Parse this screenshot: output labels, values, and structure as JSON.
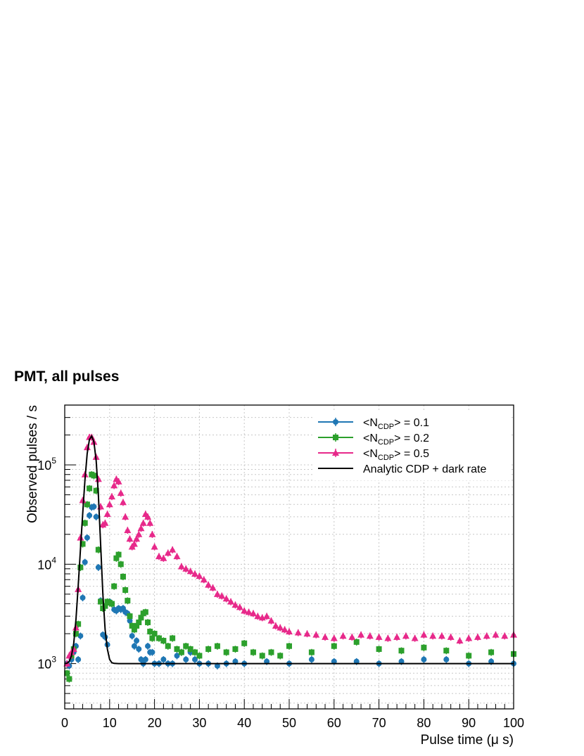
{
  "chart_data": {
    "type": "scatter",
    "title": "PMT, all pulses",
    "xlabel": "Pulse time (μ s)",
    "ylabel": "Observed pulses / s",
    "xlim": [
      0,
      100
    ],
    "ylim": [
      350,
      400000
    ],
    "y_scale": "log",
    "grid": true,
    "legend_position": "top-right",
    "x_ticks": [
      "0",
      "10",
      "20",
      "30",
      "40",
      "50",
      "60",
      "70",
      "80",
      "90",
      "100"
    ],
    "y_ticks": [
      {
        "base": "10",
        "exp": "3",
        "value": 1000
      },
      {
        "base": "10",
        "exp": "4",
        "value": 10000
      },
      {
        "base": "10",
        "exp": "5",
        "value": 100000
      }
    ],
    "series": [
      {
        "name": "<N_CDP> = 0.1",
        "legend": {
          "pre": "<N",
          "sub": "CDP",
          "post": "> = 0.1"
        },
        "color": "#1f77b4",
        "marker": "circle",
        "x": [
          0.5,
          1,
          1.5,
          2,
          2.5,
          3,
          3.5,
          4,
          4.5,
          5,
          5.5,
          6,
          6.5,
          7,
          7.5,
          8,
          8.5,
          9,
          9.5,
          10,
          10.5,
          11,
          11.5,
          12,
          12.5,
          13,
          13.5,
          14,
          14.5,
          15,
          15.5,
          16,
          16.5,
          17,
          17.5,
          18,
          18.5,
          19,
          19.5,
          20,
          21,
          22,
          23,
          24,
          25,
          26,
          27,
          28,
          29,
          30,
          32,
          34,
          36,
          38,
          40,
          45,
          50,
          55,
          60,
          65,
          70,
          75,
          80,
          85,
          90,
          95,
          100
        ],
        "y": [
          1000,
          950,
          1100,
          1300,
          1500,
          1100,
          1900,
          4600,
          10500,
          18500,
          31000,
          37500,
          38000,
          30000,
          9300,
          4300,
          1950,
          1850,
          1550,
          4200,
          4000,
          3500,
          3400,
          3600,
          3500,
          3600,
          3300,
          3200,
          2700,
          1900,
          1500,
          1700,
          1400,
          1100,
          1000,
          1100,
          1500,
          1300,
          1300,
          1000,
          1000,
          1100,
          1000,
          1000,
          1200,
          1300,
          1100,
          1300,
          1100,
          1000,
          1000,
          950,
          1000,
          1050,
          1000,
          1050,
          1000,
          1100,
          1050,
          1050,
          1000,
          1050,
          1100,
          1100,
          1000,
          1050,
          1000
        ]
      },
      {
        "name": "<N_CDP> = 0.2",
        "legend": {
          "pre": "<N",
          "sub": "CDP",
          "post": "> = 0.2"
        },
        "color": "#2ca02c",
        "marker": "square",
        "x": [
          0.5,
          1,
          1.5,
          2,
          2.5,
          3,
          3.5,
          4,
          4.5,
          5,
          5.5,
          6,
          6.5,
          7,
          7.5,
          8,
          8.5,
          9,
          9.5,
          10,
          10.5,
          11,
          11.5,
          12,
          12.5,
          13,
          13.5,
          14,
          14.5,
          15,
          15.5,
          16,
          16.5,
          17,
          17.5,
          18,
          18.5,
          19,
          19.5,
          20,
          21,
          22,
          23,
          24,
          25,
          26,
          27,
          28,
          29,
          30,
          32,
          34,
          36,
          38,
          40,
          42,
          44,
          46,
          48,
          50,
          55,
          60,
          65,
          70,
          75,
          80,
          85,
          90,
          95,
          100
        ],
        "y": [
          800,
          700,
          1200,
          1400,
          2000,
          2500,
          9300,
          16000,
          26000,
          40000,
          58000,
          80000,
          78000,
          55000,
          14000,
          4200,
          3600,
          3800,
          4200,
          4100,
          4000,
          6000,
          11500,
          12500,
          10000,
          7500,
          5500,
          4300,
          3000,
          2400,
          2200,
          2400,
          2600,
          2900,
          3200,
          3300,
          2600,
          2100,
          1800,
          2000,
          1800,
          1700,
          1500,
          1800,
          1400,
          1300,
          1500,
          1400,
          1300,
          1200,
          1400,
          1500,
          1300,
          1400,
          1600,
          1300,
          1200,
          1300,
          1200,
          1500,
          1300,
          1500,
          1650,
          1400,
          1350,
          1450,
          1350,
          1200,
          1300,
          1250
        ]
      },
      {
        "name": "<N_CDP> = 0.5",
        "legend": {
          "pre": "<N",
          "sub": "CDP",
          "post": "> = 0.5"
        },
        "color": "#e7298a",
        "marker": "triangle",
        "x": [
          0.5,
          1,
          1.5,
          2,
          2.5,
          3,
          3.5,
          4,
          4.5,
          5,
          5.5,
          6,
          6.5,
          7,
          7.5,
          8,
          8.5,
          9,
          9.5,
          10,
          10.5,
          11,
          11.5,
          12,
          12.5,
          13,
          13.5,
          14,
          14.5,
          15,
          15.5,
          16,
          16.5,
          17,
          17.5,
          18,
          18.5,
          19,
          19.5,
          20,
          21,
          22,
          23,
          24,
          25,
          26,
          27,
          28,
          29,
          30,
          31,
          32,
          33,
          34,
          35,
          36,
          37,
          38,
          39,
          40,
          41,
          42,
          43,
          44,
          45,
          46,
          47,
          48,
          49,
          50,
          52,
          54,
          56,
          58,
          60,
          62,
          64,
          66,
          68,
          70,
          72,
          74,
          76,
          78,
          80,
          82,
          84,
          86,
          88,
          90,
          92,
          94,
          96,
          98,
          100
        ],
        "y": [
          1000,
          1200,
          1300,
          1400,
          2300,
          5600,
          18500,
          44000,
          80000,
          150000,
          190000,
          190000,
          170000,
          120000,
          72000,
          38000,
          25000,
          26000,
          32000,
          40000,
          48000,
          62000,
          72000,
          68000,
          52000,
          42000,
          30000,
          22000,
          18000,
          15000,
          16000,
          18000,
          20000,
          23000,
          26000,
          32000,
          30000,
          26000,
          20000,
          15000,
          12000,
          11500,
          13000,
          14000,
          12000,
          9500,
          9000,
          8500,
          8000,
          7600,
          7000,
          6200,
          5800,
          5000,
          4800,
          4500,
          4200,
          3900,
          3700,
          3400,
          3300,
          3200,
          3000,
          2900,
          3000,
          2700,
          2400,
          2300,
          2200,
          2100,
          2050,
          2000,
          1950,
          1850,
          1800,
          1900,
          1850,
          1950,
          1900,
          1850,
          1800,
          1850,
          1900,
          1800,
          1950,
          1900,
          1900,
          1850,
          1700,
          1800,
          1850,
          1900,
          1950,
          1900,
          1950
        ]
      },
      {
        "name": "Analytic CDP + dark rate",
        "legend": {
          "pre": "Analytic CDP + dark rate",
          "sub": "",
          "post": ""
        },
        "color": "#000000",
        "type": "line",
        "x": [
          0,
          0.5,
          1,
          1.5,
          2,
          2.5,
          3,
          3.5,
          4,
          4.5,
          5,
          5.5,
          6,
          6.5,
          7,
          7.5,
          8,
          8.5,
          9,
          9.5,
          10,
          10.5,
          11,
          12,
          15,
          20,
          100
        ],
        "y": [
          1000,
          1010,
          1050,
          1200,
          1600,
          2800,
          6000,
          14000,
          32000,
          70000,
          130000,
          180000,
          195000,
          170000,
          110000,
          50000,
          16000,
          5000,
          2200,
          1400,
          1100,
          1020,
          1005,
          1000,
          1000,
          1000,
          1000
        ]
      }
    ]
  }
}
